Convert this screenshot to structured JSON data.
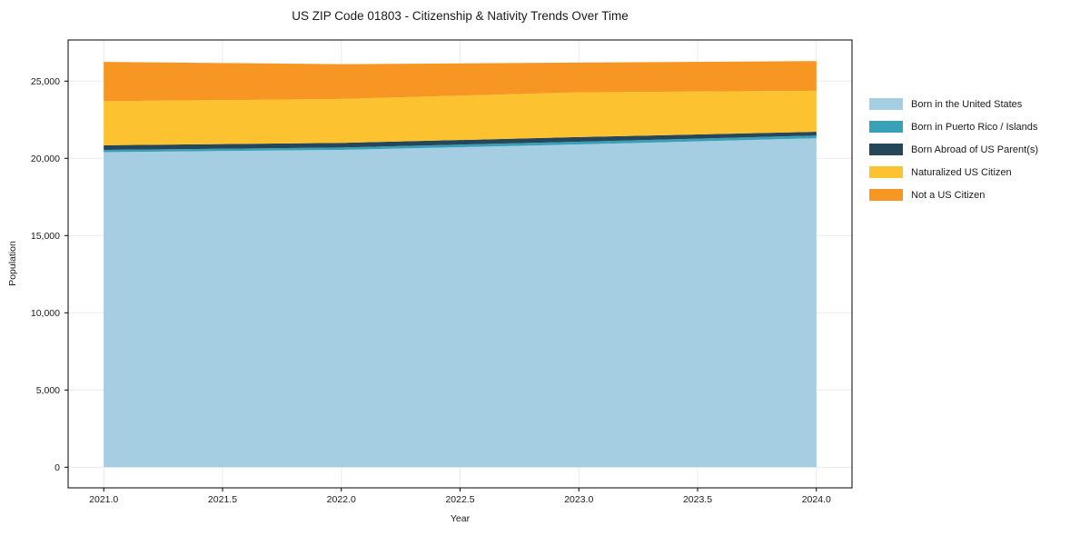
{
  "chart_data": {
    "type": "area",
    "stacked": true,
    "title": "US ZIP Code 01803 - Citizenship & Nativity Trends Over Time",
    "xlabel": "Year",
    "ylabel": "Population",
    "x": [
      2021,
      2022,
      2023,
      2024
    ],
    "series": [
      {
        "name": "Born in the United States",
        "color": "#A6CEE3",
        "values": [
          20400,
          20550,
          20900,
          21300
        ]
      },
      {
        "name": "Born in Puerto Rico / Islands",
        "color": "#3AA0B8",
        "values": [
          150,
          150,
          175,
          175
        ]
      },
      {
        "name": "Born Abroad of US Parent(s)",
        "color": "#26475A",
        "values": [
          300,
          300,
          300,
          250
        ]
      },
      {
        "name": "Naturalized US Citizen",
        "color": "#FDC22F",
        "values": [
          2850,
          2850,
          2900,
          2650
        ]
      },
      {
        "name": "Not a US Citizen",
        "color": "#F79623",
        "values": [
          2550,
          2250,
          1925,
          1925
        ]
      }
    ],
    "xlim": [
      2020.85,
      2024.15
    ],
    "ylim": [
      -1335,
      27665
    ],
    "xticks": [
      2021.0,
      2021.5,
      2022.0,
      2022.5,
      2023.0,
      2023.5,
      2024.0
    ],
    "xtick_labels": [
      "2021.0",
      "2021.5",
      "2022.0",
      "2022.5",
      "2023.0",
      "2023.5",
      "2024.0"
    ],
    "yticks": [
      0,
      5000,
      10000,
      15000,
      20000,
      25000
    ],
    "ytick_labels": [
      "0",
      "5,000",
      "10,000",
      "15,000",
      "20,000",
      "25,000"
    ],
    "grid": true,
    "legend_position": "right of plot"
  },
  "colors": {
    "background": "#FFFFFF",
    "grid": "#EBEBEB",
    "spine": "#000000",
    "tick_text": "#1a1a1a"
  }
}
